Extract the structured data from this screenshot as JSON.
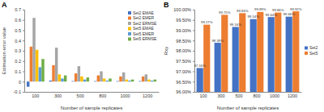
{
  "chart_data": [
    {
      "type": "bar",
      "title": "A",
      "x_label": "Number of sample replicates",
      "y_label": "Estimation error value",
      "categories": [
        "100",
        "300",
        "500",
        "800",
        "1000",
        "1200"
      ],
      "series": [
        {
          "name": "Set2 EMAE",
          "color": "#4472c4",
          "values": [
            -0.05,
            0.01,
            0.005,
            0.005,
            0.005,
            0.005
          ]
        },
        {
          "name": "Set2 EMER",
          "color": "#ed7d31",
          "values": [
            0.34,
            0.16,
            0.08,
            0.06,
            0.05,
            0.05
          ]
        },
        {
          "name": "Set2 ERMSE",
          "color": "#a5a5a5",
          "values": [
            0.62,
            0.33,
            0.15,
            0.1,
            0.09,
            0.07
          ]
        },
        {
          "name": "Set5 EMAE",
          "color": "#ffc000",
          "values": [
            0.31,
            0.07,
            0.05,
            0.03,
            0.02,
            0.02
          ]
        },
        {
          "name": "Set5 EMER",
          "color": "#5b9bd5",
          "values": [
            0.14,
            0.03,
            0.02,
            0.01,
            0.01,
            0.01
          ]
        },
        {
          "name": "Set5 ERMSE",
          "color": "#70ad47",
          "values": [
            0.22,
            0.06,
            0.04,
            0.03,
            0.02,
            0.02
          ]
        }
      ],
      "ylim": [
        -0.1,
        0.7
      ],
      "yticks": [
        -0.1,
        0,
        0.1,
        0.2,
        0.3,
        0.4,
        0.5,
        0.6,
        0.7
      ],
      "legend": "top-right"
    },
    {
      "type": "bar",
      "title": "B",
      "x_label": "Number of sample replicates",
      "y_label": "Rxy",
      "categories": [
        "100",
        "300",
        "500",
        "800",
        "1000",
        "1200"
      ],
      "series": [
        {
          "name": "Set2",
          "color": "#4472c4",
          "values": [
            97.16,
            98.39,
            99.16,
            99.54,
            99.64,
            99.66
          ],
          "value_labels": [
            "97.16%",
            "98.39%",
            "99.16%",
            "99.54%",
            "99.64%",
            "99.66%"
          ]
        },
        {
          "name": "Set5",
          "color": "#ed7d31",
          "values": [
            99.27,
            99.75,
            99.83,
            99.89,
            99.86,
            99.92
          ],
          "value_labels": [
            "99.27%",
            "99.75%",
            "99.83%",
            "99.89%",
            "99.86%",
            "99.92%"
          ]
        }
      ],
      "ylim": [
        96,
        100
      ],
      "yticks": [
        {
          "value": 96,
          "label": "96.00%"
        },
        {
          "value": 96.5,
          "label": "96.50%"
        },
        {
          "value": 97,
          "label": "97.00%"
        },
        {
          "value": 97.5,
          "label": "97.50%"
        },
        {
          "value": 98,
          "label": "98.00%"
        },
        {
          "value": 98.5,
          "label": "98.50%"
        },
        {
          "value": 99,
          "label": "99.00%"
        },
        {
          "value": 99.5,
          "label": "99.50%"
        },
        {
          "value": 100,
          "label": "100.00%"
        }
      ],
      "data_labels": true,
      "legend": "right"
    }
  ]
}
